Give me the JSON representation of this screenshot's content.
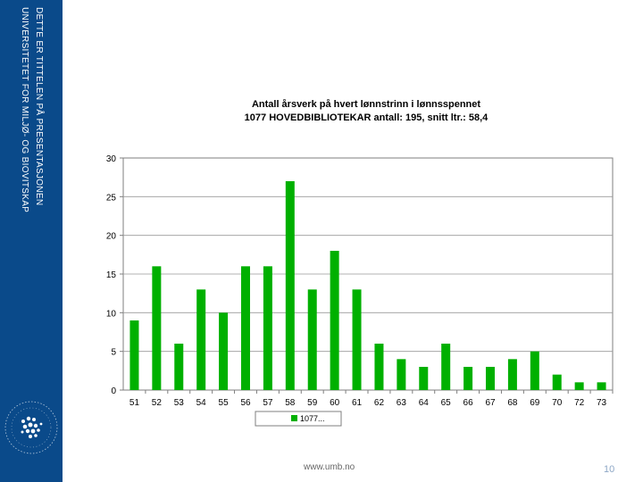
{
  "slide": {
    "side_title": "DETTE ER TITTELEN PÅ PRESENTASJONEN",
    "side_org": "UNIVERSITETET FOR MILJØ- OG BIOVITSKAP",
    "footer_url": "www.umb.no",
    "page_number": "10"
  },
  "colors": {
    "sidebar": "#0a4a8a",
    "bar": "#00b000",
    "frame": "#7f7f7f"
  },
  "chart_data": {
    "type": "bar",
    "title_lines": [
      "Antall årsverk på hvert lønnstrinn i lønnsspennet",
      "1077 HOVEDBIBLIOTEKAR antall: 195, snitt ltr.: 58,4"
    ],
    "categories": [
      "51",
      "52",
      "53",
      "54",
      "55",
      "56",
      "57",
      "58",
      "59",
      "60",
      "61",
      "62",
      "63",
      "64",
      "65",
      "66",
      "67",
      "68",
      "69",
      "70",
      "72",
      "73"
    ],
    "series": [
      {
        "name": "1077...",
        "values": [
          9,
          16,
          6,
          13,
          10,
          16,
          16,
          27,
          13,
          18,
          13,
          6,
          4,
          3,
          6,
          3,
          3,
          4,
          5,
          2,
          1,
          1
        ]
      }
    ],
    "ylim": [
      0,
      30
    ],
    "yticks": [
      0,
      5,
      10,
      15,
      20,
      25,
      30
    ],
    "grid": true,
    "legend_position": "bottom"
  }
}
